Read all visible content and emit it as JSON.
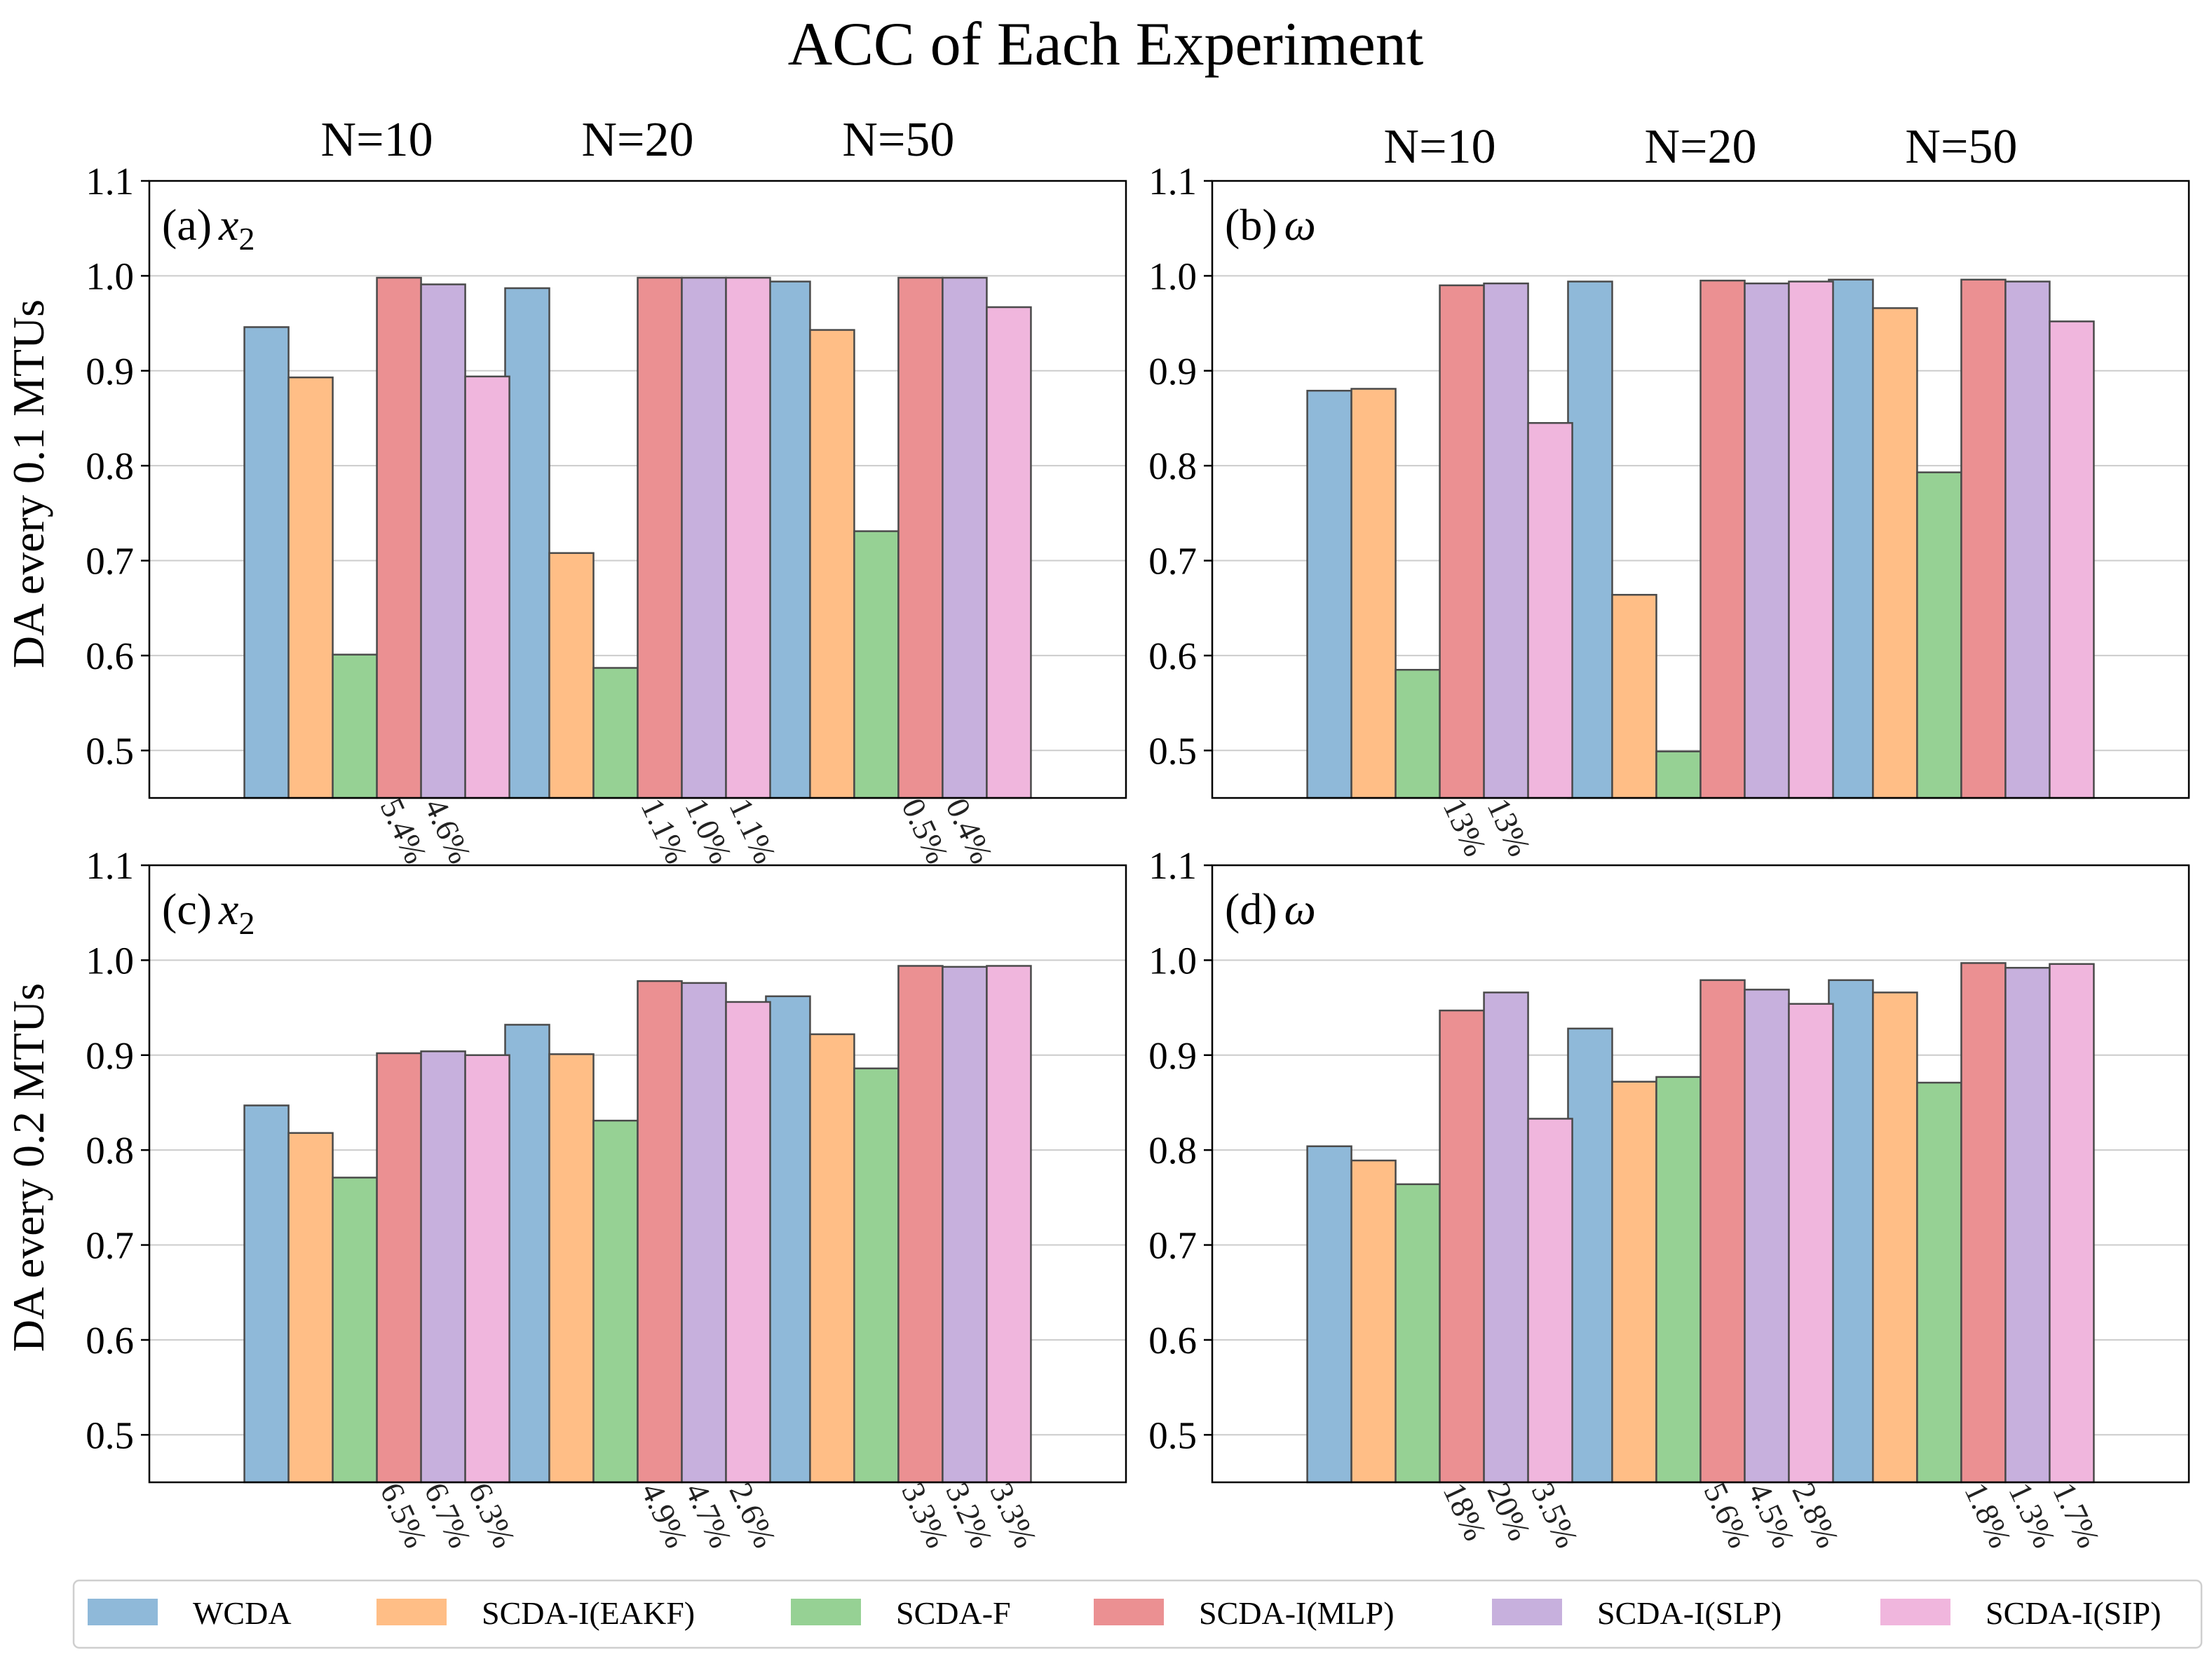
{
  "title": "ACC of Each Experiment",
  "ylabels": [
    "DA every 0.1 MTUs",
    "DA every 0.2 MTUs"
  ],
  "colors": {
    "WCDA": "#8fb9d9",
    "SCDA-I(EAKF)": "#ffbe86",
    "SCDA-F": "#96d194",
    "SCDA-I(MLP)": "#eb9092",
    "SCDA-I(SLP)": "#c7b0dd",
    "SCDA-I(SIP)": "#f0b6dd"
  },
  "chart_data": [
    {
      "type": "bar",
      "panel": "(a)",
      "variable": "x",
      "subscript": "2",
      "categories": [
        "N=10",
        "N=20",
        "N=50"
      ],
      "ylim": [
        0.45,
        1.1
      ],
      "yticks": [
        "0.5",
        "0.6",
        "0.7",
        "0.8",
        "0.9",
        "1.0",
        "1.1"
      ],
      "series": [
        {
          "name": "WCDA",
          "values": [
            0.946,
            0.987,
            0.994
          ]
        },
        {
          "name": "SCDA-I(EAKF)",
          "values": [
            0.893,
            0.708,
            0.943
          ]
        },
        {
          "name": "SCDA-F",
          "values": [
            0.601,
            0.587,
            0.731
          ]
        },
        {
          "name": "SCDA-I(MLP)",
          "values": [
            0.998,
            0.998,
            0.998
          ]
        },
        {
          "name": "SCDA-I(SLP)",
          "values": [
            0.991,
            0.998,
            0.998
          ]
        },
        {
          "name": "SCDA-I(SIP)",
          "values": [
            0.894,
            0.998,
            0.967
          ]
        }
      ],
      "annotations": [
        {
          "group": 0,
          "bar": 3,
          "text": "5.4%"
        },
        {
          "group": 0,
          "bar": 4,
          "text": "4.6%"
        },
        {
          "group": 1,
          "bar": 3,
          "text": "1.1%"
        },
        {
          "group": 1,
          "bar": 4,
          "text": "1.0%"
        },
        {
          "group": 1,
          "bar": 5,
          "text": "1.1%"
        },
        {
          "group": 2,
          "bar": 3,
          "text": "0.5%"
        },
        {
          "group": 2,
          "bar": 4,
          "text": "0.4%"
        }
      ]
    },
    {
      "type": "bar",
      "panel": "(b)",
      "variable": "ω",
      "subscript": "",
      "categories": [
        "N=10",
        "N=20",
        "N=50"
      ],
      "ylim": [
        0.45,
        1.1
      ],
      "yticks": [
        "0.5",
        "0.6",
        "0.7",
        "0.8",
        "0.9",
        "1.0",
        "1.1"
      ],
      "series": [
        {
          "name": "WCDA",
          "values": [
            0.879,
            0.994,
            0.996
          ]
        },
        {
          "name": "SCDA-I(EAKF)",
          "values": [
            0.881,
            0.664,
            0.966
          ]
        },
        {
          "name": "SCDA-F",
          "values": [
            0.585,
            0.499,
            0.793
          ]
        },
        {
          "name": "SCDA-I(MLP)",
          "values": [
            0.99,
            0.995,
            0.996
          ]
        },
        {
          "name": "SCDA-I(SLP)",
          "values": [
            0.992,
            0.992,
            0.994
          ]
        },
        {
          "name": "SCDA-I(SIP)",
          "values": [
            0.845,
            0.994,
            0.952
          ]
        }
      ],
      "annotations": [
        {
          "group": 0,
          "bar": 3,
          "text": "13%"
        },
        {
          "group": 0,
          "bar": 4,
          "text": "13%"
        }
      ]
    },
    {
      "type": "bar",
      "panel": "(c)",
      "variable": "x",
      "subscript": "2",
      "categories": [
        "N=10",
        "N=20",
        "N=50"
      ],
      "ylim": [
        0.45,
        1.1
      ],
      "yticks": [
        "0.5",
        "0.6",
        "0.7",
        "0.8",
        "0.9",
        "1.0",
        "1.1"
      ],
      "series": [
        {
          "name": "WCDA",
          "values": [
            0.847,
            0.932,
            0.962
          ]
        },
        {
          "name": "SCDA-I(EAKF)",
          "values": [
            0.818,
            0.901,
            0.922
          ]
        },
        {
          "name": "SCDA-F",
          "values": [
            0.771,
            0.831,
            0.886
          ]
        },
        {
          "name": "SCDA-I(MLP)",
          "values": [
            0.902,
            0.978,
            0.994
          ]
        },
        {
          "name": "SCDA-I(SLP)",
          "values": [
            0.904,
            0.976,
            0.993
          ]
        },
        {
          "name": "SCDA-I(SIP)",
          "values": [
            0.9,
            0.956,
            0.994
          ]
        }
      ],
      "annotations": [
        {
          "group": 0,
          "bar": 3,
          "text": "6.5%"
        },
        {
          "group": 0,
          "bar": 4,
          "text": "6.7%"
        },
        {
          "group": 0,
          "bar": 5,
          "text": "6.3%"
        },
        {
          "group": 1,
          "bar": 3,
          "text": "4.9%"
        },
        {
          "group": 1,
          "bar": 4,
          "text": "4.7%"
        },
        {
          "group": 1,
          "bar": 5,
          "text": "2.6%"
        },
        {
          "group": 2,
          "bar": 3,
          "text": "3.3%"
        },
        {
          "group": 2,
          "bar": 4,
          "text": "3.2%"
        },
        {
          "group": 2,
          "bar": 5,
          "text": "3.3%"
        }
      ]
    },
    {
      "type": "bar",
      "panel": "(d)",
      "variable": "ω",
      "subscript": "",
      "categories": [
        "N=10",
        "N=20",
        "N=50"
      ],
      "ylim": [
        0.45,
        1.1
      ],
      "yticks": [
        "0.5",
        "0.6",
        "0.7",
        "0.8",
        "0.9",
        "1.0",
        "1.1"
      ],
      "series": [
        {
          "name": "WCDA",
          "values": [
            0.804,
            0.928,
            0.979
          ]
        },
        {
          "name": "SCDA-I(EAKF)",
          "values": [
            0.789,
            0.872,
            0.966
          ]
        },
        {
          "name": "SCDA-F",
          "values": [
            0.764,
            0.877,
            0.871
          ]
        },
        {
          "name": "SCDA-I(MLP)",
          "values": [
            0.947,
            0.979,
            0.997
          ]
        },
        {
          "name": "SCDA-I(SLP)",
          "values": [
            0.966,
            0.969,
            0.992
          ]
        },
        {
          "name": "SCDA-I(SIP)",
          "values": [
            0.833,
            0.954,
            0.996
          ]
        }
      ],
      "annotations": [
        {
          "group": 0,
          "bar": 3,
          "text": "18%"
        },
        {
          "group": 0,
          "bar": 4,
          "text": "20%"
        },
        {
          "group": 0,
          "bar": 5,
          "text": "3.5%"
        },
        {
          "group": 1,
          "bar": 3,
          "text": "5.6%"
        },
        {
          "group": 1,
          "bar": 4,
          "text": "4.5%"
        },
        {
          "group": 1,
          "bar": 5,
          "text": "2.8%"
        },
        {
          "group": 2,
          "bar": 3,
          "text": "1.8%"
        },
        {
          "group": 2,
          "bar": 4,
          "text": "1.3%"
        },
        {
          "group": 2,
          "bar": 5,
          "text": "1.7%"
        }
      ]
    }
  ],
  "legend": {
    "position": "bottom",
    "entries": [
      "WCDA",
      "SCDA-I(EAKF)",
      "SCDA-F",
      "SCDA-I(MLP)",
      "SCDA-I(SLP)",
      "SCDA-I(SIP)"
    ]
  }
}
